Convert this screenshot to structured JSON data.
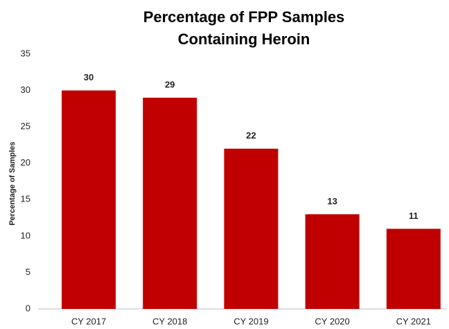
{
  "chart_data": {
    "type": "bar",
    "title": [
      "Percentage of FPP Samples",
      "Containing Heroin"
    ],
    "y_label": "Percentage of Samples",
    "categories": [
      "CY 2017",
      "CY 2018",
      "CY 2019",
      "CY 2020",
      "CY 2021"
    ],
    "values": [
      30,
      29,
      22,
      13,
      11
    ],
    "color": "#c00000",
    "ylim": [
      0,
      35
    ],
    "yticks": [
      0,
      5,
      10,
      15,
      20,
      25,
      30,
      35
    ],
    "grid": false
  }
}
